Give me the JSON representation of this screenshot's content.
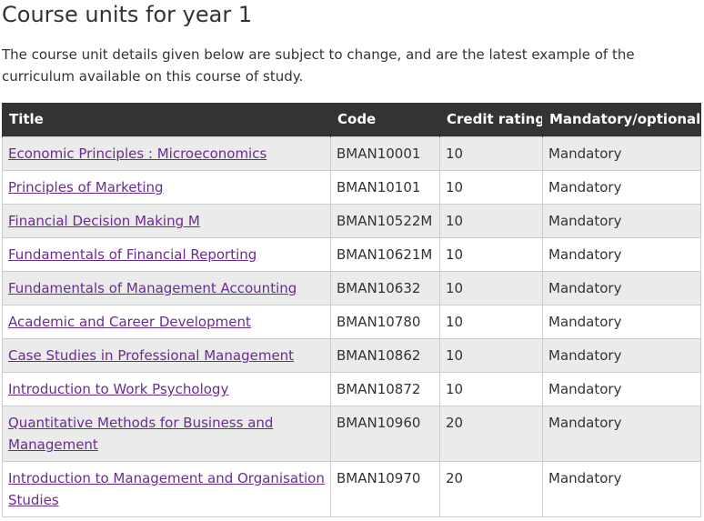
{
  "heading": "Course units for year 1",
  "intro": "The course unit details given below are subject to change, and are the latest example of the curriculum available on this course of study.",
  "table": {
    "headers": {
      "title": "Title",
      "code": "Code",
      "credit": "Credit rating",
      "mandatory": "Mandatory/optional"
    },
    "rows": [
      {
        "title": "Economic Principles : Microeconomics",
        "code": "BMAN10001",
        "credit": "10",
        "mandatory": "Mandatory"
      },
      {
        "title": "Principles of Marketing",
        "code": "BMAN10101",
        "credit": "10",
        "mandatory": "Mandatory"
      },
      {
        "title": "Financial Decision Making M",
        "code": "BMAN10522M",
        "credit": "10",
        "mandatory": "Mandatory"
      },
      {
        "title": "Fundamentals of Financial Reporting",
        "code": "BMAN10621M",
        "credit": "10",
        "mandatory": "Mandatory"
      },
      {
        "title": "Fundamentals of Management Accounting",
        "code": "BMAN10632",
        "credit": "10",
        "mandatory": "Mandatory"
      },
      {
        "title": "Academic and Career Development",
        "code": "BMAN10780",
        "credit": "10",
        "mandatory": "Mandatory"
      },
      {
        "title": "Case Studies in Professional Management",
        "code": "BMAN10862",
        "credit": "10",
        "mandatory": "Mandatory"
      },
      {
        "title": "Introduction to Work Psychology",
        "code": "BMAN10872",
        "credit": "10",
        "mandatory": "Mandatory"
      },
      {
        "title": "Quantitative Methods for Business and Management",
        "code": "BMAN10960",
        "credit": "20",
        "mandatory": "Mandatory"
      },
      {
        "title": "Introduction to Management and Organisation Studies",
        "code": "BMAN10970",
        "credit": "20",
        "mandatory": "Mandatory"
      }
    ]
  },
  "colors": {
    "header_bg": "#333333",
    "header_text": "#ffffff",
    "link": "#6b2c91",
    "row_alt": "#ebebeb",
    "border": "#cccccc"
  }
}
